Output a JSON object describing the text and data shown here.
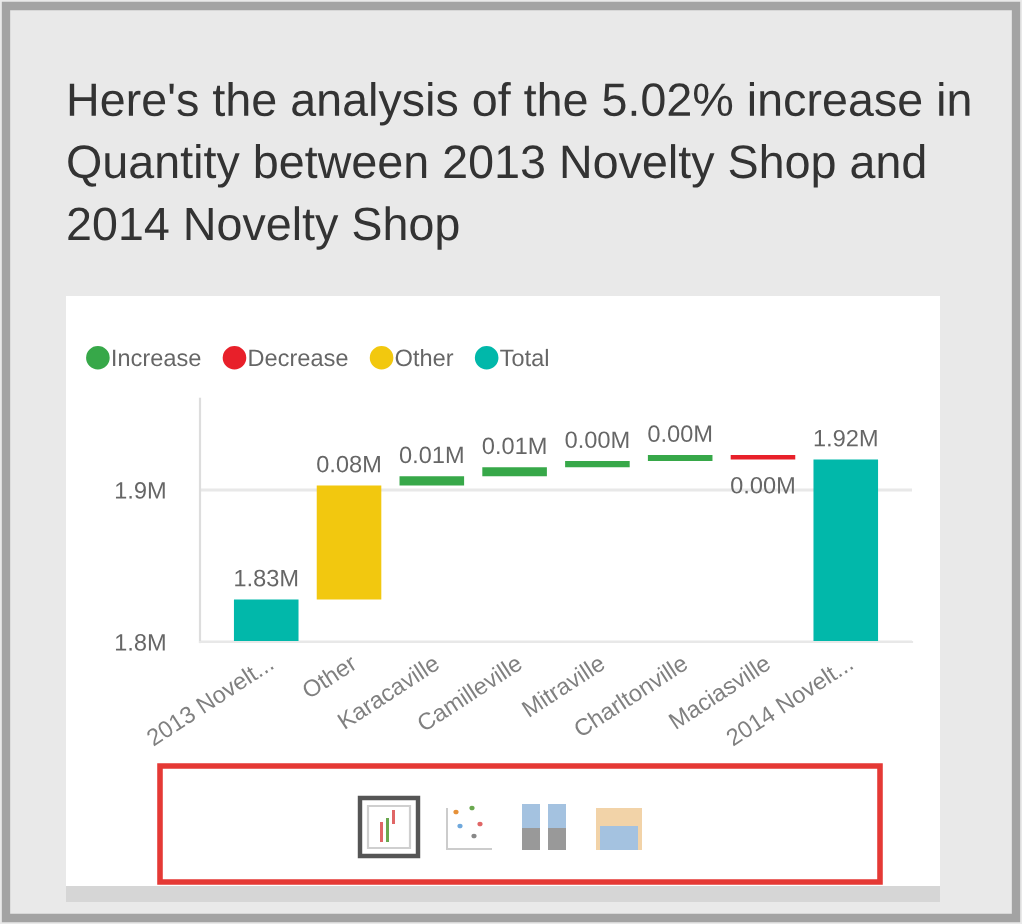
{
  "chart_data": {
    "type": "bar",
    "title": "Here's the analysis of the 5.02% increase in Quantity between 2013 Novelty Shop and 2014 Novelty Shop",
    "categories": [
      "2013 Novelt...",
      "Other",
      "Karacaville",
      "Camilleville",
      "Mitraville",
      "Charltonville",
      "Maciasville",
      "2014 Novelt..."
    ],
    "series": [
      {
        "name": "Increase",
        "color": "#37a849",
        "values": [
          null,
          null,
          0.006,
          0.006,
          0.004,
          0.004,
          null,
          null
        ],
        "base": [
          null,
          null,
          1.903,
          1.909,
          1.915,
          1.919,
          null,
          null
        ],
        "value_labels": [
          null,
          null,
          "0.01M",
          "0.01M",
          "0.00M",
          "0.00M",
          null,
          null
        ]
      },
      {
        "name": "Decrease",
        "color": "#e8202a",
        "values": [
          null,
          null,
          null,
          null,
          null,
          null,
          -0.003,
          null
        ],
        "base": [
          null,
          null,
          null,
          null,
          null,
          null,
          1.923,
          null
        ],
        "value_labels": [
          null,
          null,
          null,
          null,
          null,
          null,
          "0.00M",
          null
        ]
      },
      {
        "name": "Other",
        "color": "#f2c80f",
        "values": [
          null,
          0.075,
          null,
          null,
          null,
          null,
          null,
          null
        ],
        "base": [
          null,
          1.828,
          null,
          null,
          null,
          null,
          null,
          null
        ],
        "value_labels": [
          null,
          "0.08M",
          null,
          null,
          null,
          null,
          null,
          null
        ]
      },
      {
        "name": "Total",
        "color": "#01b8aa",
        "values": [
          1.828,
          null,
          null,
          null,
          null,
          null,
          null,
          1.92
        ],
        "value_labels": [
          "1.83M",
          null,
          null,
          null,
          null,
          null,
          null,
          "1.92M"
        ]
      }
    ],
    "ylim": [
      1.8,
      1.96
    ],
    "yticks": [
      {
        "value": 1.8,
        "label": "1.8M"
      },
      {
        "value": 1.9,
        "label": "1.9M"
      }
    ],
    "grid": "y",
    "legend": "top left"
  }
}
